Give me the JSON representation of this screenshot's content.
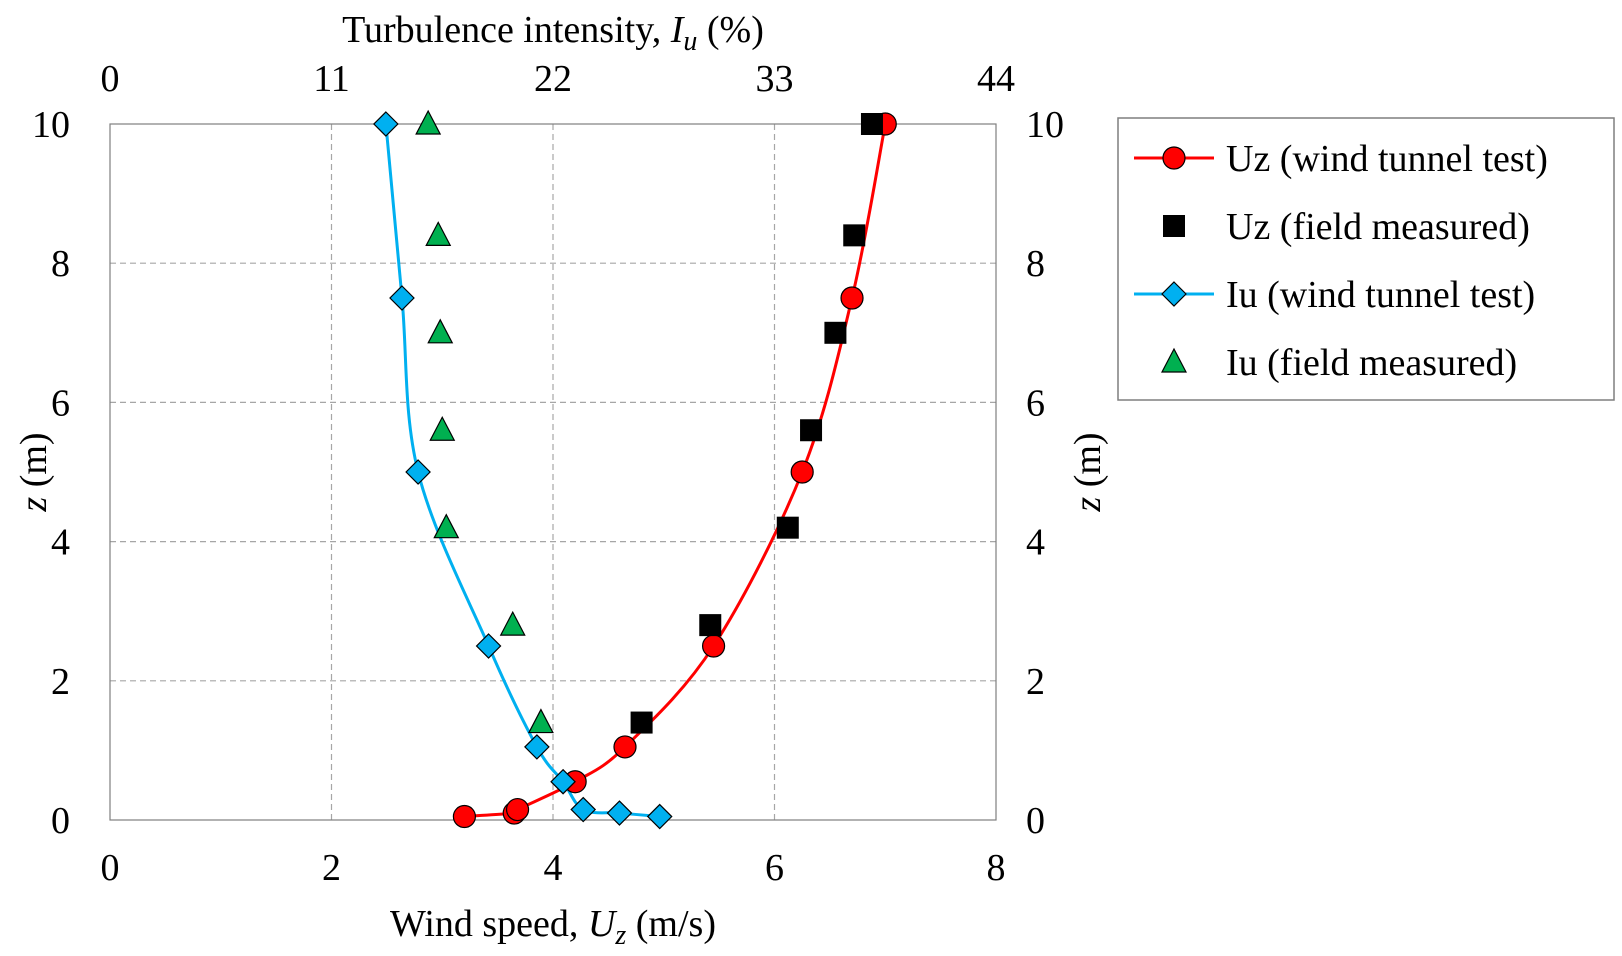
{
  "chart_data": {
    "type": "scatter",
    "x_bottom": {
      "label_prefix": "Wind speed, ",
      "label_var": "U",
      "label_sub": "z",
      "label_suffix": "  (m/s)",
      "lim": [
        0,
        8
      ],
      "ticks": [
        0,
        2,
        4,
        6,
        8
      ]
    },
    "x_top": {
      "label_prefix": "Turbulence intensity, ",
      "label_var": "I",
      "label_sub": "u",
      "label_suffix": "  (%)",
      "lim": [
        0,
        44
      ],
      "ticks": [
        0,
        11,
        22,
        33,
        44
      ]
    },
    "y_left": {
      "label_var": "z",
      "label_suffix": " (m)",
      "lim": [
        0,
        10
      ],
      "ticks": [
        0,
        2,
        4,
        6,
        8,
        10
      ]
    },
    "y_right": {
      "label_var": "z",
      "label_suffix": " (m)",
      "ticks": [
        0,
        2,
        4,
        6,
        8,
        10
      ]
    },
    "grid": true,
    "legend_position": "right",
    "series": [
      {
        "name": "Uz (wind tunnel test)",
        "axis": "bottom",
        "marker": "circle",
        "color": "#ff0000",
        "line": true,
        "points": [
          [
            3.2,
            0.05
          ],
          [
            3.65,
            0.1
          ],
          [
            3.68,
            0.15
          ],
          [
            4.2,
            0.55
          ],
          [
            4.65,
            1.05
          ],
          [
            5.45,
            2.5
          ],
          [
            6.25,
            5.0
          ],
          [
            6.7,
            7.5
          ],
          [
            7.0,
            10.0
          ]
        ]
      },
      {
        "name": "Uz (field measured)",
        "axis": "bottom",
        "marker": "square",
        "color": "#000000",
        "line": false,
        "points": [
          [
            4.8,
            1.4
          ],
          [
            5.42,
            2.8
          ],
          [
            6.12,
            4.2
          ],
          [
            6.33,
            5.6
          ],
          [
            6.55,
            7.0
          ],
          [
            6.72,
            8.4
          ],
          [
            6.88,
            10.0
          ]
        ]
      },
      {
        "name": "Iu (wind tunnel test)",
        "axis": "top",
        "marker": "diamond",
        "color": "#00b0f0",
        "line": true,
        "points": [
          [
            13.7,
            10.0
          ],
          [
            14.5,
            7.5
          ],
          [
            15.3,
            5.0
          ],
          [
            18.8,
            2.5
          ],
          [
            21.2,
            1.05
          ],
          [
            22.5,
            0.55
          ],
          [
            23.5,
            0.15
          ],
          [
            25.3,
            0.1
          ],
          [
            27.3,
            0.05
          ]
        ]
      },
      {
        "name": "Iu (field measured)",
        "axis": "top",
        "marker": "triangle",
        "color": "#00b050",
        "line": false,
        "points": [
          [
            15.8,
            10.0
          ],
          [
            16.3,
            8.4
          ],
          [
            16.4,
            7.0
          ],
          [
            16.5,
            5.6
          ],
          [
            16.7,
            4.2
          ],
          [
            20.0,
            2.8
          ],
          [
            21.4,
            1.4
          ]
        ]
      }
    ]
  }
}
